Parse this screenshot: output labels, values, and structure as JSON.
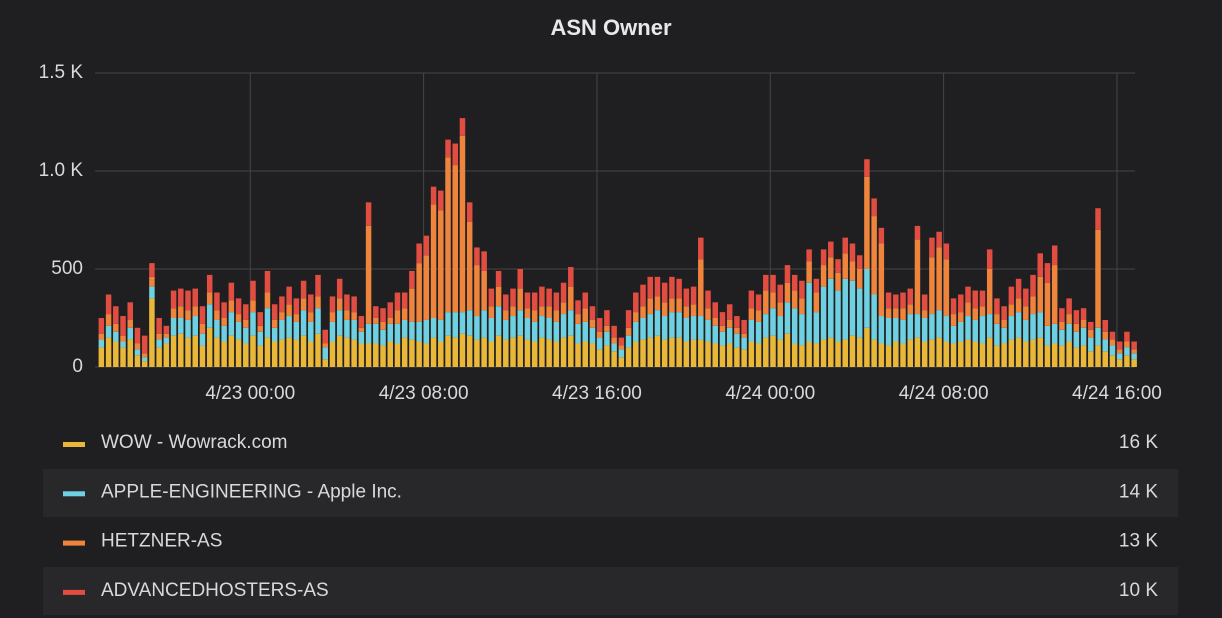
{
  "chart_data": {
    "type": "stacked-bar",
    "title": "ASN Owner",
    "ylim": [
      0,
      1500
    ],
    "yticks": [
      0,
      500,
      {
        "value": 1000,
        "label": "1.0 K"
      },
      {
        "value": 1500,
        "label": "1.5 K"
      }
    ],
    "xlim": [
      "4/22 16:50",
      "4/24 16:50"
    ],
    "xticks": [
      "4/23 00:00",
      "4/23 08:00",
      "4/23 16:00",
      "4/24 00:00",
      "4/24 08:00",
      "4/24 16:00"
    ],
    "grid": true,
    "x": [
      "4/22 17:00",
      "4/22 17:20",
      "4/22 17:40",
      "4/22 18:00",
      "4/22 18:20",
      "4/22 18:40",
      "4/22 19:00",
      "4/22 19:20",
      "4/22 19:40",
      "4/22 20:00",
      "4/22 20:20",
      "4/22 20:40",
      "4/22 21:00",
      "4/22 21:20",
      "4/22 21:40",
      "4/22 22:00",
      "4/22 22:20",
      "4/22 22:40",
      "4/22 23:00",
      "4/22 23:20",
      "4/22 23:40",
      "4/23 00:00",
      "4/23 00:20",
      "4/23 00:40",
      "4/23 01:00",
      "4/23 01:20",
      "4/23 01:40",
      "4/23 02:00",
      "4/23 02:20",
      "4/23 02:40",
      "4/23 03:00",
      "4/23 03:20",
      "4/23 03:40",
      "4/23 04:00",
      "4/23 04:20",
      "4/23 04:40",
      "4/23 05:00",
      "4/23 05:20",
      "4/23 05:40",
      "4/23 06:00",
      "4/23 06:20",
      "4/23 06:40",
      "4/23 07:00",
      "4/23 07:20",
      "4/23 07:40",
      "4/23 08:00",
      "4/23 08:20",
      "4/23 08:40",
      "4/23 09:00",
      "4/23 09:20",
      "4/23 09:40",
      "4/23 10:00",
      "4/23 10:20",
      "4/23 10:40",
      "4/23 11:00",
      "4/23 11:20",
      "4/23 11:40",
      "4/23 12:00",
      "4/23 12:20",
      "4/23 12:40",
      "4/23 13:00",
      "4/23 13:20",
      "4/23 13:40",
      "4/23 14:00",
      "4/23 14:20",
      "4/23 14:40",
      "4/23 15:00",
      "4/23 15:20",
      "4/23 15:40",
      "4/23 16:00",
      "4/23 16:20",
      "4/23 16:40",
      "4/23 17:00",
      "4/23 17:20",
      "4/23 17:40",
      "4/23 18:00",
      "4/23 18:20",
      "4/23 18:40",
      "4/23 19:00",
      "4/23 19:20",
      "4/23 19:40",
      "4/23 20:00",
      "4/23 20:20",
      "4/23 20:40",
      "4/23 21:00",
      "4/23 21:20",
      "4/23 21:40",
      "4/23 22:00",
      "4/23 22:20",
      "4/23 22:40",
      "4/23 23:00",
      "4/23 23:20",
      "4/23 23:40",
      "4/24 00:00",
      "4/24 00:20",
      "4/24 00:40",
      "4/24 01:00",
      "4/24 01:20",
      "4/24 01:40",
      "4/24 02:00",
      "4/24 02:20",
      "4/24 02:40",
      "4/24 03:00",
      "4/24 03:20",
      "4/24 03:40",
      "4/24 04:00",
      "4/24 04:20",
      "4/24 04:40",
      "4/24 05:00",
      "4/24 05:20",
      "4/24 05:40",
      "4/24 06:00",
      "4/24 06:20",
      "4/24 06:40",
      "4/24 07:00",
      "4/24 07:20",
      "4/24 07:40",
      "4/24 08:00",
      "4/24 08:20",
      "4/24 08:40",
      "4/24 09:00",
      "4/24 09:20",
      "4/24 09:40",
      "4/24 10:00",
      "4/24 10:20",
      "4/24 10:40",
      "4/24 11:00",
      "4/24 11:20",
      "4/24 11:40",
      "4/24 12:00",
      "4/24 12:20",
      "4/24 12:40",
      "4/24 13:00",
      "4/24 13:20",
      "4/24 13:40",
      "4/24 14:00",
      "4/24 14:20",
      "4/24 14:40",
      "4/24 15:00",
      "4/24 15:20",
      "4/24 15:40",
      "4/24 16:00",
      "4/24 16:20",
      "4/24 16:40"
    ],
    "series": [
      {
        "name": "WOW - Wowrack.com",
        "color": "#eab839",
        "total_label": "16 K",
        "values": [
          100,
          150,
          130,
          100,
          140,
          60,
          30,
          350,
          100,
          120,
          160,
          170,
          150,
          160,
          110,
          200,
          150,
          130,
          160,
          140,
          120,
          160,
          110,
          150,
          130,
          140,
          150,
          140,
          160,
          130,
          170,
          40,
          130,
          160,
          150,
          140,
          120,
          120,
          120,
          110,
          130,
          120,
          150,
          140,
          130,
          120,
          150,
          130,
          160,
          150,
          170,
          160,
          140,
          150,
          130,
          160,
          140,
          150,
          160,
          140,
          130,
          150,
          140,
          130,
          150,
          160,
          120,
          130,
          120,
          90,
          110,
          80,
          50,
          100,
          130,
          140,
          150,
          160,
          140,
          150,
          150,
          130,
          140,
          140,
          130,
          120,
          110,
          120,
          100,
          90,
          130,
          120,
          150,
          160,
          140,
          170,
          120,
          110,
          130,
          120,
          140,
          150,
          130,
          140,
          160,
          150,
          200,
          140,
          120,
          110,
          130,
          120,
          140,
          150,
          130,
          140,
          150,
          130,
          120,
          130,
          140,
          130,
          120,
          150,
          110,
          120,
          140,
          150,
          130,
          140,
          150,
          110,
          120,
          110,
          130,
          100,
          110,
          80,
          110,
          80,
          60,
          40,
          60,
          40
        ]
      },
      {
        "name": "APPLE-ENGINEERING - Apple Inc.",
        "color": "#6ed0e0",
        "total_label": "14 K",
        "values": [
          40,
          60,
          50,
          30,
          60,
          30,
          20,
          60,
          40,
          30,
          90,
          80,
          90,
          100,
          60,
          120,
          90,
          80,
          120,
          90,
          80,
          120,
          70,
          150,
          70,
          100,
          110,
          90,
          130,
          100,
          130,
          60,
          100,
          130,
          90,
          100,
          60,
          100,
          100,
          80,
          90,
          100,
          90,
          90,
          100,
          120,
          100,
          110,
          120,
          130,
          110,
          130,
          120,
          140,
          120,
          150,
          100,
          110,
          130,
          110,
          100,
          110,
          110,
          100,
          120,
          130,
          100,
          100,
          80,
          60,
          70,
          40,
          40,
          60,
          100,
          110,
          120,
          130,
          120,
          130,
          130,
          120,
          120,
          120,
          110,
          90,
          70,
          80,
          70,
          60,
          110,
          110,
          120,
          140,
          120,
          160,
          180,
          160,
          300,
          160,
          270,
          300,
          260,
          310,
          280,
          250,
          300,
          230,
          140,
          140,
          120,
          120,
          130,
          120,
          120,
          130,
          140,
          130,
          90,
          100,
          120,
          110,
          140,
          120,
          110,
          80,
          120,
          130,
          110,
          130,
          130,
          100,
          100,
          80,
          90,
          80,
          90,
          70,
          90,
          60,
          50,
          30,
          40,
          30
        ]
      },
      {
        "name": "HETZNER-AS",
        "color": "#ef843c",
        "total_label": "13 K",
        "values": [
          30,
          60,
          40,
          30,
          40,
          30,
          20,
          50,
          30,
          20,
          50,
          60,
          50,
          50,
          50,
          60,
          50,
          40,
          60,
          40,
          40,
          60,
          30,
          80,
          40,
          40,
          60,
          40,
          60,
          50,
          60,
          20,
          50,
          60,
          50,
          40,
          20,
          500,
          30,
          40,
          30,
          70,
          60,
          170,
          300,
          330,
          580,
          560,
          790,
          750,
          900,
          450,
          260,
          200,
          60,
          100,
          50,
          50,
          110,
          50,
          60,
          50,
          60,
          60,
          60,
          120,
          50,
          70,
          40,
          30,
          30,
          30,
          20,
          40,
          50,
          60,
          80,
          70,
          70,
          70,
          70,
          60,
          60,
          290,
          60,
          40,
          30,
          40,
          30,
          20,
          60,
          60,
          120,
          80,
          70,
          100,
          90,
          80,
          110,
          100,
          110,
          110,
          90,
          130,
          100,
          100,
          470,
          400,
          370,
          50,
          50,
          60,
          50,
          380,
          40,
          290,
          320,
          290,
          60,
          50,
          70,
          60,
          50,
          230,
          50,
          40,
          60,
          70,
          70,
          90,
          180,
          220,
          300,
          40,
          50,
          40,
          40,
          40,
          500,
          40,
          30,
          20,
          30,
          20
        ]
      },
      {
        "name": "ADVANCEDHOSTERS-AS",
        "color": "#e24d42",
        "total_label": "10 K",
        "values": [
          80,
          100,
          90,
          100,
          90,
          80,
          90,
          70,
          80,
          40,
          90,
          90,
          100,
          90,
          90,
          90,
          90,
          80,
          90,
          80,
          80,
          100,
          70,
          110,
          80,
          80,
          90,
          80,
          90,
          90,
          110,
          70,
          80,
          100,
          80,
          80,
          60,
          120,
          60,
          70,
          80,
          90,
          80,
          90,
          100,
          100,
          90,
          100,
          90,
          110,
          90,
          100,
          90,
          100,
          90,
          80,
          80,
          90,
          100,
          80,
          90,
          100,
          90,
          90,
          100,
          100,
          70,
          80,
          70,
          70,
          80,
          60,
          40,
          90,
          100,
          110,
          110,
          100,
          100,
          110,
          100,
          90,
          90,
          110,
          90,
          80,
          70,
          80,
          60,
          70,
          90,
          80,
          80,
          90,
          90,
          90,
          80,
          90,
          60,
          70,
          80,
          80,
          70,
          80,
          90,
          70,
          90,
          90,
          80,
          80,
          70,
          80,
          80,
          70,
          80,
          100,
          80,
          80,
          80,
          90,
          80,
          90,
          80,
          100,
          80,
          70,
          90,
          100,
          90,
          110,
          120,
          100,
          100,
          70,
          80,
          70,
          60,
          40,
          110,
          60,
          40,
          40,
          50,
          40
        ]
      }
    ]
  }
}
